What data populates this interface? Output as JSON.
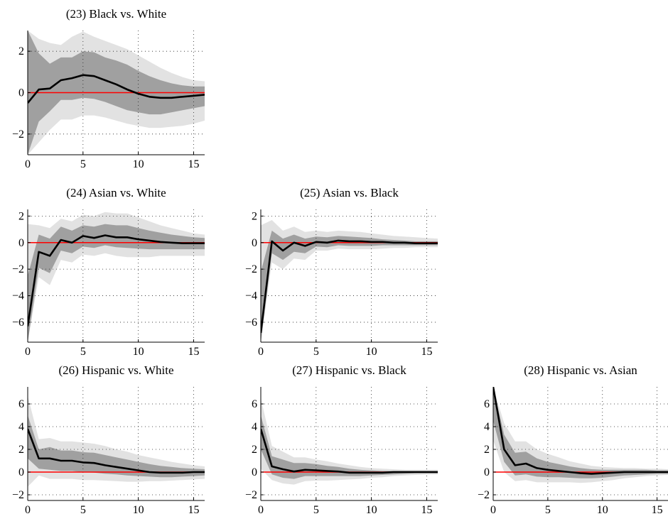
{
  "chart_data": [
    {
      "type": "line",
      "title": "(23) Black vs. White",
      "xlim": [
        0,
        16
      ],
      "ylim": [
        -3,
        3
      ],
      "xticks": [
        0,
        5,
        10,
        15
      ],
      "yticks": [
        -2,
        0,
        2
      ],
      "grid": "dotted",
      "x": [
        0,
        1,
        2,
        3,
        4,
        5,
        6,
        7,
        8,
        9,
        10,
        11,
        12,
        13,
        14,
        15,
        16
      ],
      "series": [
        {
          "role": "median",
          "color": "#000000",
          "values": [
            -0.5,
            0.15,
            0.2,
            0.6,
            0.7,
            0.85,
            0.8,
            0.6,
            0.4,
            0.15,
            -0.05,
            -0.2,
            -0.25,
            -0.25,
            -0.2,
            -0.15,
            -0.1
          ]
        },
        {
          "role": "inner_upper",
          "color": "#a0a0a0",
          "values": [
            3.0,
            1.9,
            1.4,
            1.7,
            1.7,
            2.0,
            1.95,
            1.7,
            1.55,
            1.35,
            1.05,
            0.8,
            0.6,
            0.45,
            0.35,
            0.3,
            0.3
          ]
        },
        {
          "role": "inner_lower",
          "color": "#a0a0a0",
          "values": [
            -3.0,
            -1.4,
            -0.9,
            -0.35,
            -0.35,
            -0.25,
            -0.3,
            -0.45,
            -0.65,
            -0.85,
            -0.95,
            -1.05,
            -1.05,
            -0.95,
            -0.85,
            -0.75,
            -0.65
          ]
        },
        {
          "role": "outer_upper",
          "color": "#e2e2e2",
          "values": [
            3.0,
            2.6,
            2.4,
            2.3,
            2.7,
            2.95,
            2.7,
            2.5,
            2.3,
            2.1,
            1.8,
            1.5,
            1.2,
            0.95,
            0.75,
            0.6,
            0.55
          ]
        },
        {
          "role": "outer_lower",
          "color": "#e2e2e2",
          "values": [
            -3.0,
            -2.4,
            -1.8,
            -1.3,
            -1.3,
            -1.1,
            -1.1,
            -1.2,
            -1.35,
            -1.5,
            -1.6,
            -1.7,
            -1.7,
            -1.65,
            -1.6,
            -1.5,
            -1.35
          ]
        }
      ],
      "zero_line_color": "#ff0000"
    },
    {
      "type": "line",
      "title": "(24) Asian vs. White",
      "xlim": [
        0,
        16
      ],
      "ylim": [
        -7.5,
        2.5
      ],
      "xticks": [
        0,
        5,
        10,
        15
      ],
      "yticks": [
        -6,
        -4,
        -2,
        0,
        2
      ],
      "grid": "dotted",
      "x": [
        0,
        1,
        2,
        3,
        4,
        5,
        6,
        7,
        8,
        9,
        10,
        11,
        12,
        13,
        14,
        15,
        16
      ],
      "series": [
        {
          "role": "median",
          "color": "#000000",
          "values": [
            -6.3,
            -0.7,
            -1.0,
            0.2,
            0.0,
            0.5,
            0.35,
            0.55,
            0.4,
            0.4,
            0.25,
            0.15,
            0.05,
            0.0,
            -0.05,
            -0.05,
            -0.05
          ]
        },
        {
          "role": "inner_upper",
          "color": "#a0a0a0",
          "values": [
            -2.5,
            0.6,
            0.3,
            1.2,
            0.9,
            1.3,
            1.2,
            1.4,
            1.3,
            1.3,
            1.1,
            0.9,
            0.75,
            0.6,
            0.5,
            0.4,
            0.35
          ]
        },
        {
          "role": "inner_lower",
          "color": "#a0a0a0",
          "values": [
            -7.5,
            -1.9,
            -2.3,
            -0.6,
            -0.8,
            -0.3,
            -0.4,
            -0.2,
            -0.35,
            -0.4,
            -0.45,
            -0.5,
            -0.5,
            -0.5,
            -0.5,
            -0.5,
            -0.5
          ]
        },
        {
          "role": "outer_upper",
          "color": "#e2e2e2",
          "values": [
            1.4,
            1.3,
            1.1,
            1.8,
            1.6,
            2.1,
            2.0,
            2.3,
            2.2,
            2.2,
            1.9,
            1.6,
            1.3,
            1.1,
            0.9,
            0.7,
            0.6
          ]
        },
        {
          "role": "outer_lower",
          "color": "#e2e2e2",
          "values": [
            -7.5,
            -2.6,
            -3.2,
            -1.3,
            -1.5,
            -0.9,
            -1.0,
            -0.8,
            -1.0,
            -1.1,
            -1.1,
            -1.1,
            -1.0,
            -1.0,
            -1.0,
            -1.0,
            -1.0
          ]
        }
      ],
      "zero_line_color": "#ff0000"
    },
    {
      "type": "line",
      "title": "(25) Asian vs. Black",
      "xlim": [
        0,
        16
      ],
      "ylim": [
        -7.5,
        2.5
      ],
      "xticks": [
        0,
        5,
        10,
        15
      ],
      "yticks": [
        -6,
        -4,
        -2,
        0,
        2
      ],
      "grid": "dotted",
      "x": [
        0,
        1,
        2,
        3,
        4,
        5,
        6,
        7,
        8,
        9,
        10,
        11,
        12,
        13,
        14,
        15,
        16
      ],
      "series": [
        {
          "role": "median",
          "color": "#000000",
          "values": [
            -6.8,
            0.1,
            -0.6,
            0.0,
            -0.25,
            0.05,
            0.0,
            0.15,
            0.1,
            0.1,
            0.05,
            0.05,
            0.0,
            0.0,
            -0.05,
            -0.05,
            -0.05
          ]
        },
        {
          "role": "inner_upper",
          "color": "#a0a0a0",
          "values": [
            -2.2,
            0.9,
            0.3,
            0.6,
            0.3,
            0.45,
            0.4,
            0.5,
            0.45,
            0.4,
            0.35,
            0.25,
            0.2,
            0.15,
            0.1,
            0.1,
            0.1
          ]
        },
        {
          "role": "inner_lower",
          "color": "#a0a0a0",
          "values": [
            -7.5,
            -0.8,
            -1.3,
            -0.7,
            -0.8,
            -0.3,
            -0.35,
            -0.2,
            -0.25,
            -0.25,
            -0.25,
            -0.2,
            -0.2,
            -0.2,
            -0.2,
            -0.2,
            -0.2
          ]
        },
        {
          "role": "outer_upper",
          "color": "#e2e2e2",
          "values": [
            1.3,
            1.7,
            0.9,
            1.2,
            0.8,
            0.9,
            0.8,
            0.9,
            0.85,
            0.8,
            0.7,
            0.6,
            0.5,
            0.45,
            0.4,
            0.35,
            0.3
          ]
        },
        {
          "role": "outer_lower",
          "color": "#e2e2e2",
          "values": [
            -7.5,
            -1.5,
            -2.0,
            -1.2,
            -1.3,
            -0.6,
            -0.6,
            -0.45,
            -0.5,
            -0.5,
            -0.5,
            -0.45,
            -0.4,
            -0.4,
            -0.35,
            -0.35,
            -0.35
          ]
        }
      ],
      "zero_line_color": "#ff0000"
    },
    {
      "type": "line",
      "title": "(26) Hispanic vs. White",
      "xlim": [
        0,
        16
      ],
      "ylim": [
        -2.5,
        7.5
      ],
      "xticks": [
        0,
        5,
        10,
        15
      ],
      "yticks": [
        -2,
        0,
        2,
        4,
        6
      ],
      "grid": "dotted",
      "x": [
        0,
        1,
        2,
        3,
        4,
        5,
        6,
        7,
        8,
        9,
        10,
        11,
        12,
        13,
        14,
        15,
        16
      ],
      "series": [
        {
          "role": "median",
          "color": "#000000",
          "values": [
            3.8,
            1.2,
            1.2,
            1.0,
            1.0,
            0.85,
            0.8,
            0.6,
            0.45,
            0.3,
            0.15,
            0.0,
            -0.05,
            -0.05,
            -0.05,
            0.0,
            0.0
          ]
        },
        {
          "role": "inner_upper",
          "color": "#a0a0a0",
          "values": [
            5.0,
            2.0,
            2.2,
            1.9,
            1.9,
            1.75,
            1.7,
            1.5,
            1.3,
            1.1,
            0.9,
            0.7,
            0.55,
            0.45,
            0.35,
            0.3,
            0.25
          ]
        },
        {
          "role": "inner_lower",
          "color": "#a0a0a0",
          "values": [
            1.2,
            0.3,
            0.2,
            0.1,
            0.1,
            0.0,
            -0.05,
            -0.15,
            -0.2,
            -0.3,
            -0.35,
            -0.4,
            -0.45,
            -0.45,
            -0.4,
            -0.35,
            -0.3
          ]
        },
        {
          "role": "outer_upper",
          "color": "#e2e2e2",
          "values": [
            6.7,
            2.9,
            3.0,
            2.7,
            2.7,
            2.6,
            2.5,
            2.3,
            2.0,
            1.8,
            1.5,
            1.3,
            1.1,
            0.9,
            0.75,
            0.6,
            0.5
          ]
        },
        {
          "role": "outer_lower",
          "color": "#e2e2e2",
          "values": [
            -1.3,
            -0.3,
            -0.6,
            -0.6,
            -0.6,
            -0.7,
            -0.7,
            -0.75,
            -0.8,
            -0.85,
            -0.85,
            -0.8,
            -0.8,
            -0.75,
            -0.7,
            -0.65,
            -0.6
          ]
        }
      ],
      "zero_line_color": "#ff0000"
    },
    {
      "type": "line",
      "title": "(27) Hispanic vs. Black",
      "xlim": [
        0,
        16
      ],
      "ylim": [
        -2.5,
        7.5
      ],
      "xticks": [
        0,
        5,
        10,
        15
      ],
      "yticks": [
        -2,
        0,
        2,
        4,
        6
      ],
      "grid": "dotted",
      "x": [
        0,
        1,
        2,
        3,
        4,
        5,
        6,
        7,
        8,
        9,
        10,
        11,
        12,
        13,
        14,
        15,
        16
      ],
      "series": [
        {
          "role": "median",
          "color": "#000000",
          "values": [
            3.8,
            0.5,
            0.25,
            0.05,
            0.2,
            0.15,
            0.1,
            0.05,
            -0.05,
            -0.05,
            -0.05,
            -0.05,
            0.0,
            0.0,
            0.0,
            0.0,
            0.0
          ]
        },
        {
          "role": "inner_upper",
          "color": "#a0a0a0",
          "values": [
            5.0,
            1.4,
            1.1,
            0.8,
            0.8,
            0.7,
            0.55,
            0.45,
            0.3,
            0.2,
            0.15,
            0.1,
            0.1,
            0.1,
            0.1,
            0.1,
            0.1
          ]
        },
        {
          "role": "inner_lower",
          "color": "#a0a0a0",
          "values": [
            2.0,
            -0.2,
            -0.5,
            -0.6,
            -0.35,
            -0.35,
            -0.35,
            -0.35,
            -0.35,
            -0.35,
            -0.3,
            -0.25,
            -0.2,
            -0.15,
            -0.1,
            -0.1,
            -0.1
          ]
        },
        {
          "role": "outer_upper",
          "color": "#e2e2e2",
          "values": [
            6.5,
            2.3,
            1.8,
            1.3,
            1.3,
            1.1,
            0.95,
            0.75,
            0.6,
            0.45,
            0.35,
            0.3,
            0.25,
            0.2,
            0.2,
            0.2,
            0.2
          ]
        },
        {
          "role": "outer_lower",
          "color": "#e2e2e2",
          "values": [
            0.3,
            -0.7,
            -1.0,
            -1.1,
            -0.8,
            -0.75,
            -0.75,
            -0.7,
            -0.65,
            -0.6,
            -0.5,
            -0.45,
            -0.35,
            -0.3,
            -0.25,
            -0.2,
            -0.2
          ]
        }
      ],
      "zero_line_color": "#ff0000"
    },
    {
      "type": "line",
      "title": "(28) Hispanic vs. Asian",
      "xlim": [
        0,
        16
      ],
      "ylim": [
        -2.5,
        7.5
      ],
      "xticks": [
        0,
        5,
        10,
        15
      ],
      "yticks": [
        -2,
        0,
        2,
        4,
        6
      ],
      "grid": "dotted",
      "x": [
        0,
        1,
        2,
        3,
        4,
        5,
        6,
        7,
        8,
        9,
        10,
        11,
        12,
        13,
        14,
        15,
        16
      ],
      "series": [
        {
          "role": "median",
          "color": "#000000",
          "values": [
            7.5,
            2.0,
            0.6,
            0.75,
            0.35,
            0.2,
            0.1,
            0.0,
            -0.1,
            -0.15,
            -0.1,
            -0.05,
            0.0,
            0.0,
            0.0,
            0.0,
            0.0
          ]
        },
        {
          "role": "inner_upper",
          "color": "#a0a0a0",
          "values": [
            7.5,
            3.3,
            1.7,
            1.8,
            1.2,
            0.9,
            0.7,
            0.5,
            0.35,
            0.25,
            0.2,
            0.2,
            0.2,
            0.2,
            0.2,
            0.15,
            0.15
          ]
        },
        {
          "role": "inner_lower",
          "color": "#a0a0a0",
          "values": [
            4.5,
            0.9,
            -0.3,
            -0.2,
            -0.4,
            -0.45,
            -0.45,
            -0.5,
            -0.55,
            -0.55,
            -0.5,
            -0.4,
            -0.3,
            -0.25,
            -0.2,
            -0.15,
            -0.15
          ]
        },
        {
          "role": "outer_upper",
          "color": "#e2e2e2",
          "values": [
            7.5,
            4.3,
            2.7,
            2.7,
            2.0,
            1.6,
            1.3,
            0.95,
            0.75,
            0.55,
            0.45,
            0.4,
            0.35,
            0.35,
            0.3,
            0.3,
            0.25
          ]
        },
        {
          "role": "outer_lower",
          "color": "#e2e2e2",
          "values": [
            2.8,
            0.0,
            -0.8,
            -0.7,
            -0.9,
            -0.9,
            -0.9,
            -0.9,
            -0.95,
            -0.9,
            -0.8,
            -0.7,
            -0.55,
            -0.45,
            -0.35,
            -0.3,
            -0.25
          ]
        }
      ],
      "zero_line_color": "#ff0000"
    }
  ]
}
